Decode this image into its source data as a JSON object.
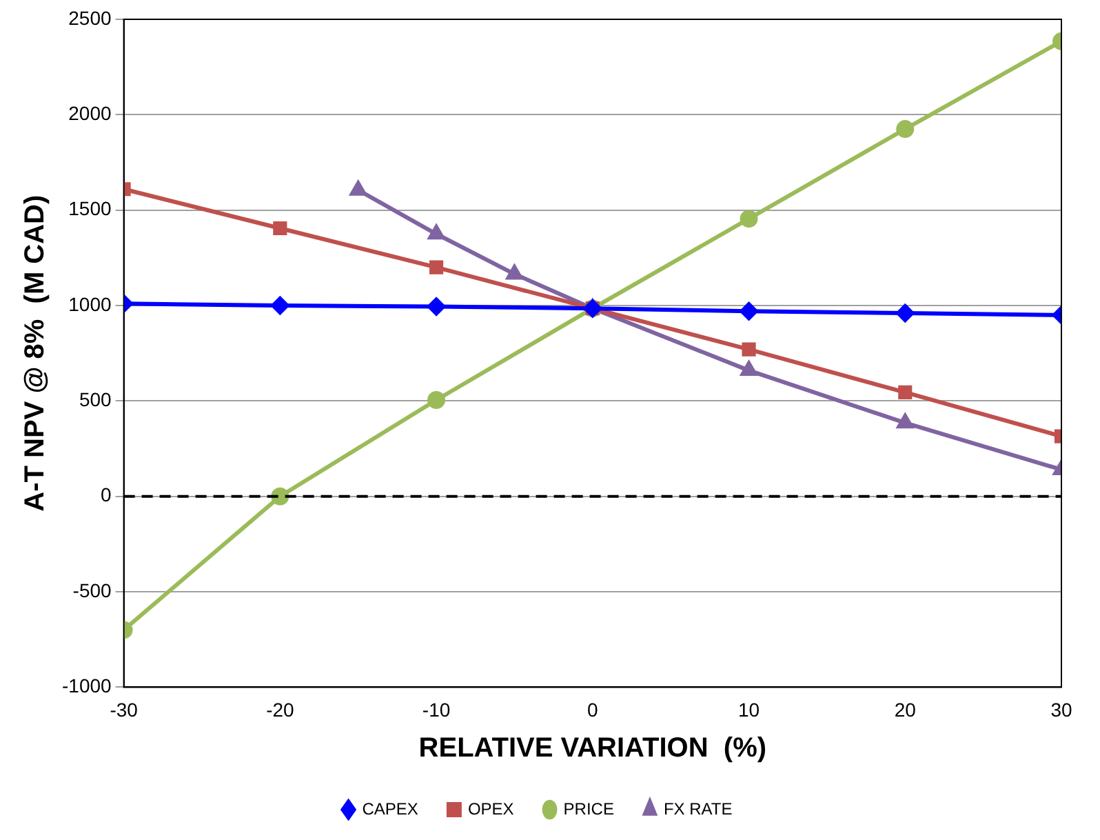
{
  "chart_data": {
    "type": "line",
    "xlabel": "RELATIVE VARIATION  (%)",
    "ylabel": "A-T NPV @ 8%  (M CAD)",
    "xlim": [
      -30,
      30
    ],
    "xticks": [
      -30,
      -20,
      -10,
      0,
      10,
      20,
      30
    ],
    "ylim": [
      -1000,
      2500
    ],
    "yticks": [
      -1000,
      -500,
      0,
      500,
      1000,
      1500,
      2000,
      2500
    ],
    "grid": "y",
    "legend": "bottom",
    "line_style": "solid",
    "ref_lines": [
      {
        "axis": "y",
        "value": 0,
        "color": "#000000",
        "line_style": "dashed"
      }
    ],
    "series": [
      {
        "name": "CAPEX",
        "color": "#0000ff",
        "marker": "diamond",
        "x": [
          -30,
          -20,
          -10,
          0,
          10,
          20,
          30
        ],
        "values": [
          1010,
          1000,
          995,
          985,
          970,
          960,
          950
        ]
      },
      {
        "name": "OPEX",
        "color": "#c0504d",
        "marker": "square",
        "x": [
          -30,
          -20,
          -10,
          0,
          10,
          20,
          30
        ],
        "values": [
          1610,
          1405,
          1200,
          985,
          770,
          545,
          315
        ]
      },
      {
        "name": "PRICE",
        "color": "#9bbb59",
        "marker": "circle",
        "x": [
          -30,
          -20,
          -10,
          0,
          10,
          20,
          30
        ],
        "values": [
          -700,
          0,
          505,
          985,
          1455,
          1925,
          2385
        ]
      },
      {
        "name": "FX RATE",
        "color": "#8064a2",
        "marker": "triangle",
        "x": [
          -15,
          -10,
          -5,
          0,
          10,
          20,
          30
        ],
        "values": [
          1605,
          1375,
          1165,
          985,
          660,
          385,
          140
        ]
      }
    ]
  }
}
